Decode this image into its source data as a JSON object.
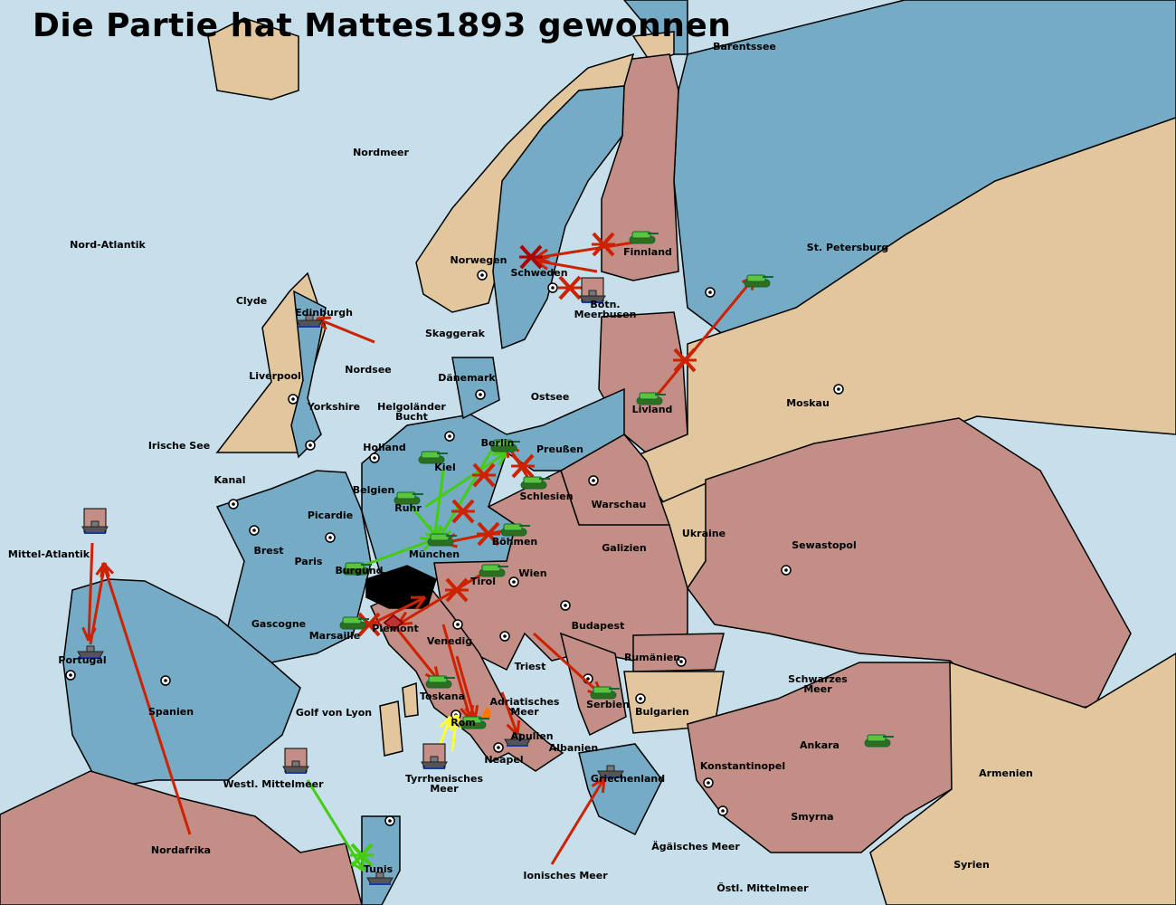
{
  "title": "Die Partie hat Mattes1893 gewonnen",
  "colors": {
    "sea": "#c6dfea",
    "deep_blue_power": "#76abc6",
    "red_power": "#c38e86",
    "neutral_tan": "#e2c69e",
    "switzerland": "#000000",
    "arrow_red": "#cc2200",
    "arrow_green": "#44cc11",
    "arrow_yellow": "#ffff33"
  },
  "labels": [
    [
      "Barentssee"
    ],
    [
      "Nordmeer"
    ],
    [
      "Nord-Atlantik"
    ],
    [
      "Finnland"
    ],
    [
      "St. Petersburg"
    ],
    [
      "Norwegen"
    ],
    [
      "Schweden"
    ],
    [
      "Clyde"
    ],
    [
      "Botn.",
      "Meerbusen"
    ],
    [
      "Edinburgh"
    ],
    [
      "Skaggerak"
    ],
    [
      "Nordsee"
    ],
    [
      "Liverpool"
    ],
    [
      "Dänemark"
    ],
    [
      "Ostsee"
    ],
    [
      "Moskau"
    ],
    [
      "Yorkshire"
    ],
    [
      "Helgoländer",
      "Bucht"
    ],
    [
      "Livland"
    ],
    [
      "Irische See"
    ],
    [
      "Holland"
    ],
    [
      "Preußen"
    ],
    [
      "Berlin"
    ],
    [
      "Kiel"
    ],
    [
      "Kanal"
    ],
    [
      "Belgien"
    ],
    [
      "Schlesien"
    ],
    [
      "Warschau"
    ],
    [
      "Ruhr"
    ],
    [
      "Picardie"
    ],
    [
      "Ukraine"
    ],
    [
      "Böhmen"
    ],
    [
      "Sewastopol"
    ],
    [
      "Brest"
    ],
    [
      "Mittel-Atlantik"
    ],
    [
      "Galizien"
    ],
    [
      "München"
    ],
    [
      "Paris"
    ],
    [
      "Burgund"
    ],
    [
      "Wien"
    ],
    [
      "Tirol"
    ],
    [
      "Gascogne"
    ],
    [
      "Budapest"
    ],
    [
      "Piemont"
    ],
    [
      "Marsaille"
    ],
    [
      "Venedig"
    ],
    [
      "Rumänien"
    ],
    [
      "Portugal"
    ],
    [
      "Triest"
    ],
    [
      "Schwarzes",
      "Meer"
    ],
    [
      "Toskana"
    ],
    [
      "Adriatisches",
      "Meer"
    ],
    [
      "Spanien"
    ],
    [
      "Bulgarien"
    ],
    [
      "Serbien"
    ],
    [
      "Golf von Lyon"
    ],
    [
      "Rom"
    ],
    [
      "Apulien"
    ],
    [
      "Albanien"
    ],
    [
      "Ankara"
    ],
    [
      "Neapel"
    ],
    [
      "Konstantinopel"
    ],
    [
      "Armenien"
    ],
    [
      "Tyrrhenisches",
      "Meer"
    ],
    [
      "Griechenland"
    ],
    [
      "Westl. Mittelmeer"
    ],
    [
      "Smyrna"
    ],
    [
      "Nordafrika"
    ],
    [
      "Ägäisches Meer"
    ],
    [
      "Syrien"
    ],
    [
      "Tunis"
    ],
    [
      "Ionisches Meer"
    ],
    [
      "Östl. Mittelmeer"
    ]
  ],
  "unit_icons": [
    "tank-icon",
    "ship-icon"
  ]
}
